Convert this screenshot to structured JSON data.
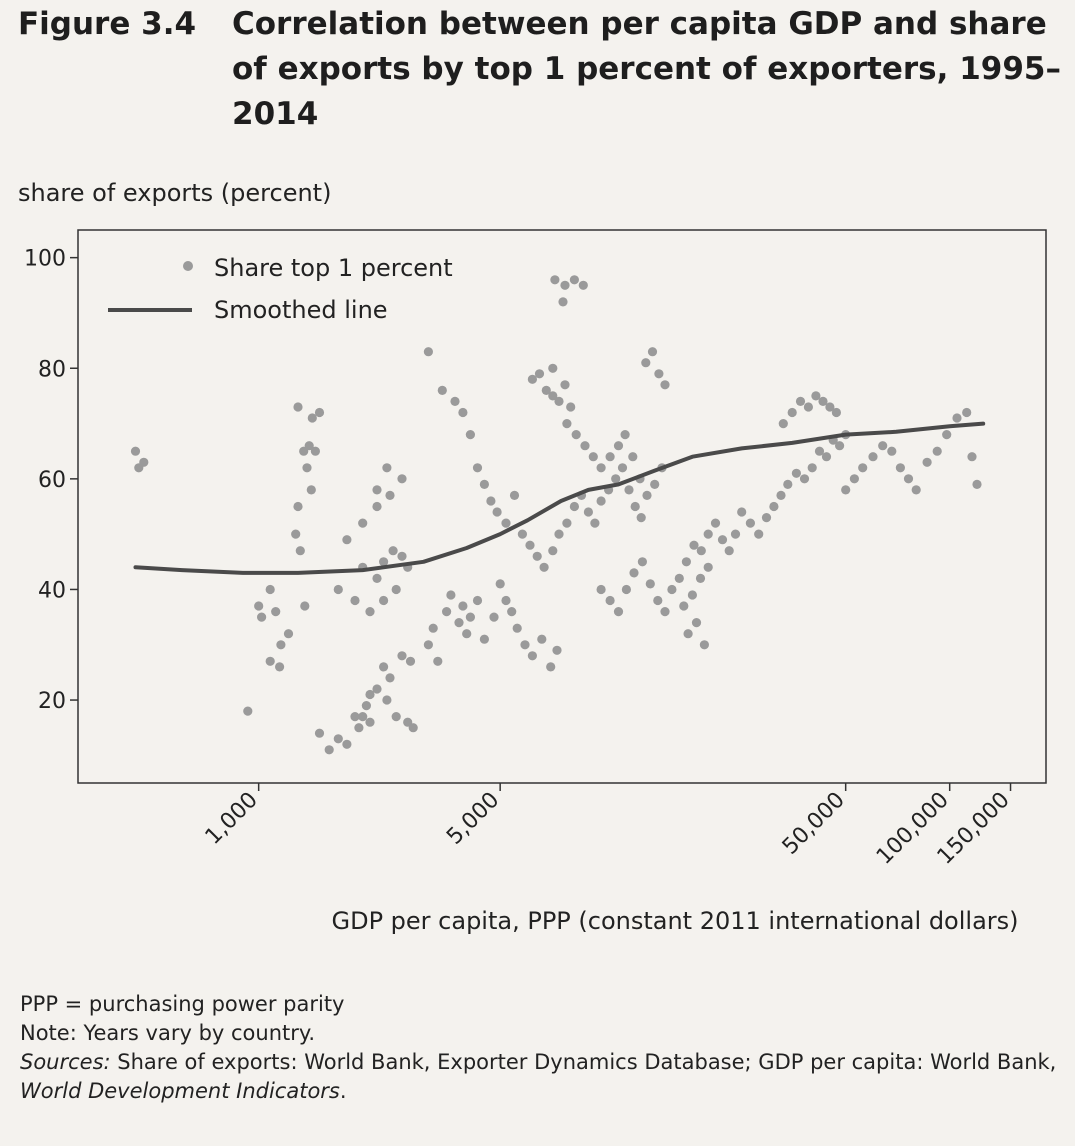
{
  "figure": {
    "number": "Figure 3.4",
    "title": "Correlation between per capita GDP and share of exports by top 1 percent of exporters, 1995–2014"
  },
  "chart_data": {
    "type": "scatter",
    "title": "Correlation between per capita GDP and share of exports by top 1 percent of exporters, 1995–2014",
    "ylabel": "share of exports (percent)",
    "xlabel": "GDP per capita, PPP (constant 2011 international dollars)",
    "x_scale": "log",
    "xlim": [
      300,
      190000
    ],
    "ylim": [
      5,
      105
    ],
    "y_ticks": [
      20,
      40,
      60,
      80,
      100
    ],
    "x_ticks": [
      1000,
      5000,
      50000,
      100000,
      150000
    ],
    "x_tick_labels": [
      "1,000",
      "5,000",
      "50,000",
      "100,000",
      "150,000"
    ],
    "grid": false,
    "legend_position": "top-left",
    "colors": {
      "points": "#9a9a9a",
      "line": "#4a4a4a",
      "axes": "#333333"
    },
    "series": [
      {
        "name": "Share top 1 percent",
        "type": "scatter",
        "points": [
          [
            440,
            65
          ],
          [
            450,
            62
          ],
          [
            465,
            63
          ],
          [
            930,
            18
          ],
          [
            1000,
            37
          ],
          [
            1020,
            35
          ],
          [
            1080,
            40
          ],
          [
            1120,
            36
          ],
          [
            1160,
            30
          ],
          [
            1080,
            27
          ],
          [
            1150,
            26
          ],
          [
            1220,
            32
          ],
          [
            1280,
            50
          ],
          [
            1320,
            47
          ],
          [
            1300,
            55
          ],
          [
            1380,
            62
          ],
          [
            1420,
            58
          ],
          [
            1350,
            65
          ],
          [
            1400,
            66
          ],
          [
            1460,
            65
          ],
          [
            1430,
            71
          ],
          [
            1500,
            72
          ],
          [
            1300,
            73
          ],
          [
            1360,
            37
          ],
          [
            1500,
            14
          ],
          [
            1600,
            11
          ],
          [
            1700,
            13
          ],
          [
            1800,
            12
          ],
          [
            1950,
            15
          ],
          [
            1900,
            17
          ],
          [
            2000,
            17
          ],
          [
            2100,
            16
          ],
          [
            2050,
            19
          ],
          [
            2200,
            22
          ],
          [
            2400,
            24
          ],
          [
            2600,
            28
          ],
          [
            2750,
            27
          ],
          [
            2300,
            26
          ],
          [
            2100,
            21
          ],
          [
            2350,
            20
          ],
          [
            2500,
            17
          ],
          [
            2700,
            16
          ],
          [
            2800,
            15
          ],
          [
            2000,
            44
          ],
          [
            2200,
            42
          ],
          [
            2300,
            45
          ],
          [
            2450,
            47
          ],
          [
            2600,
            46
          ],
          [
            2700,
            44
          ],
          [
            2500,
            40
          ],
          [
            2300,
            38
          ],
          [
            2100,
            36
          ],
          [
            1900,
            38
          ],
          [
            1800,
            49
          ],
          [
            2000,
            52
          ],
          [
            2200,
            55
          ],
          [
            2400,
            57
          ],
          [
            2600,
            60
          ],
          [
            2350,
            62
          ],
          [
            2200,
            58
          ],
          [
            1700,
            40
          ],
          [
            3100,
            30
          ],
          [
            3200,
            33
          ],
          [
            3300,
            27
          ],
          [
            3500,
            36
          ],
          [
            3600,
            39
          ],
          [
            3800,
            34
          ],
          [
            3900,
            37
          ],
          [
            4000,
            32
          ],
          [
            4100,
            35
          ],
          [
            4300,
            38
          ],
          [
            4500,
            31
          ],
          [
            4800,
            35
          ],
          [
            5000,
            41
          ],
          [
            5200,
            38
          ],
          [
            5400,
            36
          ],
          [
            5600,
            33
          ],
          [
            5900,
            30
          ],
          [
            6200,
            28
          ],
          [
            6600,
            31
          ],
          [
            7000,
            26
          ],
          [
            7300,
            29
          ],
          [
            3100,
            83
          ],
          [
            3400,
            76
          ],
          [
            3700,
            74
          ],
          [
            3900,
            72
          ],
          [
            4100,
            68
          ],
          [
            4300,
            62
          ],
          [
            4500,
            59
          ],
          [
            4700,
            56
          ],
          [
            4900,
            54
          ],
          [
            5200,
            52
          ],
          [
            5500,
            57
          ],
          [
            5800,
            50
          ],
          [
            6100,
            48
          ],
          [
            6400,
            46
          ],
          [
            6700,
            44
          ],
          [
            7100,
            47
          ],
          [
            7400,
            50
          ],
          [
            7800,
            52
          ],
          [
            8200,
            55
          ],
          [
            8600,
            57
          ],
          [
            9000,
            54
          ],
          [
            9400,
            52
          ],
          [
            9800,
            56
          ],
          [
            10300,
            58
          ],
          [
            10800,
            60
          ],
          [
            11300,
            62
          ],
          [
            11800,
            58
          ],
          [
            12300,
            55
          ],
          [
            12800,
            53
          ],
          [
            6200,
            78
          ],
          [
            6500,
            79
          ],
          [
            6800,
            76
          ],
          [
            7100,
            75
          ],
          [
            7400,
            74
          ],
          [
            7700,
            77
          ],
          [
            8000,
            73
          ],
          [
            7200,
            96
          ],
          [
            7700,
            95
          ],
          [
            8200,
            96
          ],
          [
            8700,
            95
          ],
          [
            7600,
            92
          ],
          [
            7100,
            80
          ],
          [
            7800,
            70
          ],
          [
            8300,
            68
          ],
          [
            8800,
            66
          ],
          [
            9300,
            64
          ],
          [
            9800,
            62
          ],
          [
            10400,
            64
          ],
          [
            11000,
            66
          ],
          [
            11500,
            68
          ],
          [
            12100,
            64
          ],
          [
            12700,
            60
          ],
          [
            13300,
            57
          ],
          [
            14000,
            59
          ],
          [
            14700,
            62
          ],
          [
            13200,
            81
          ],
          [
            13800,
            83
          ],
          [
            14400,
            79
          ],
          [
            15000,
            77
          ],
          [
            9800,
            40
          ],
          [
            10400,
            38
          ],
          [
            11000,
            36
          ],
          [
            11600,
            40
          ],
          [
            12200,
            43
          ],
          [
            12900,
            45
          ],
          [
            13600,
            41
          ],
          [
            14300,
            38
          ],
          [
            15000,
            36
          ],
          [
            15700,
            40
          ],
          [
            16500,
            42
          ],
          [
            17300,
            45
          ],
          [
            18200,
            48
          ],
          [
            19100,
            47
          ],
          [
            20000,
            50
          ],
          [
            21000,
            52
          ],
          [
            22000,
            49
          ],
          [
            23000,
            47
          ],
          [
            24000,
            50
          ],
          [
            17000,
            37
          ],
          [
            18000,
            39
          ],
          [
            19000,
            42
          ],
          [
            20000,
            44
          ],
          [
            17500,
            32
          ],
          [
            18500,
            34
          ],
          [
            19500,
            30
          ],
          [
            25000,
            54
          ],
          [
            26500,
            52
          ],
          [
            28000,
            50
          ],
          [
            29500,
            53
          ],
          [
            31000,
            55
          ],
          [
            32500,
            57
          ],
          [
            34000,
            59
          ],
          [
            36000,
            61
          ],
          [
            38000,
            60
          ],
          [
            40000,
            62
          ],
          [
            42000,
            65
          ],
          [
            44000,
            64
          ],
          [
            46000,
            67
          ],
          [
            48000,
            66
          ],
          [
            50000,
            68
          ],
          [
            33000,
            70
          ],
          [
            35000,
            72
          ],
          [
            37000,
            74
          ],
          [
            39000,
            73
          ],
          [
            41000,
            75
          ],
          [
            43000,
            74
          ],
          [
            45000,
            73
          ],
          [
            47000,
            72
          ],
          [
            50000,
            58
          ],
          [
            53000,
            60
          ],
          [
            56000,
            62
          ],
          [
            60000,
            64
          ],
          [
            64000,
            66
          ],
          [
            68000,
            65
          ],
          [
            72000,
            62
          ],
          [
            76000,
            60
          ],
          [
            80000,
            58
          ],
          [
            86000,
            63
          ],
          [
            92000,
            65
          ],
          [
            98000,
            68
          ],
          [
            105000,
            71
          ],
          [
            112000,
            72
          ],
          [
            120000,
            59
          ],
          [
            116000,
            64
          ]
        ]
      },
      {
        "name": "Smoothed line",
        "type": "line",
        "points": [
          [
            440,
            44
          ],
          [
            600,
            43.5
          ],
          [
            900,
            43
          ],
          [
            1300,
            43
          ],
          [
            2000,
            43.5
          ],
          [
            3000,
            45
          ],
          [
            4000,
            47.5
          ],
          [
            5000,
            50
          ],
          [
            6000,
            52.5
          ],
          [
            7500,
            56
          ],
          [
            9000,
            58
          ],
          [
            11000,
            59
          ],
          [
            14000,
            61.5
          ],
          [
            18000,
            64
          ],
          [
            25000,
            65.5
          ],
          [
            35000,
            66.5
          ],
          [
            50000,
            68
          ],
          [
            70000,
            68.5
          ],
          [
            100000,
            69.5
          ],
          [
            125000,
            70
          ]
        ]
      }
    ]
  },
  "notes": {
    "ppp": "PPP = purchasing power parity",
    "years": "Note: Years vary by country.",
    "sources_label": "Sources:",
    "sources_text_1": " Share of exports: World Bank, Exporter Dynamics Database; GDP per capita: World Bank, ",
    "sources_title": "World Development Indicators",
    "sources_end": "."
  }
}
